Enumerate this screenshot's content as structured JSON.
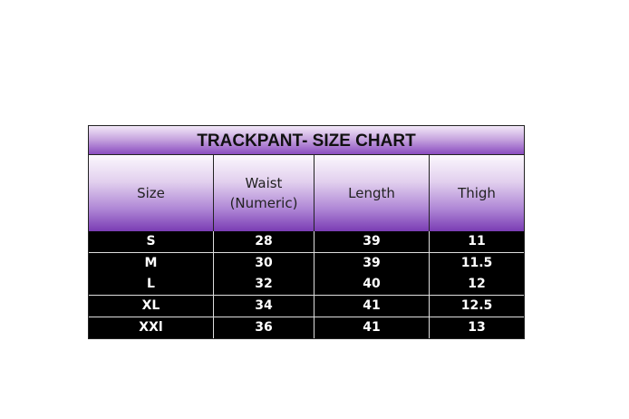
{
  "title": "TRACKPANT- SIZE CHART",
  "headers": [
    "Size",
    "Waist\n(Numeric)",
    "Length",
    "Thigh"
  ],
  "header_lines": {
    "waist_1": "Waist",
    "waist_2": "(Numeric)"
  },
  "rows": [
    [
      "S",
      "28",
      "39",
      "11"
    ],
    [
      "M",
      "30",
      "39",
      "11.5"
    ],
    [
      "L",
      "32",
      "40",
      "12"
    ],
    [
      "XL",
      "34",
      "41",
      "12.5"
    ],
    [
      "XXl",
      "36",
      "41",
      "13"
    ]
  ],
  "colors": {
    "header_purple": "#7a3cb4",
    "body_bg": "#000000",
    "body_text": "#ffffff"
  }
}
